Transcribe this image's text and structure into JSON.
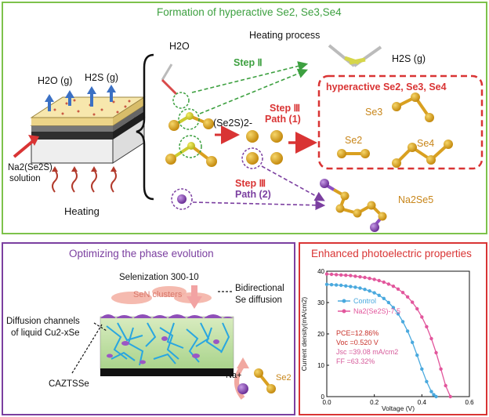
{
  "top": {
    "title": "Formation of hyperactive Se2, Se3,Se4",
    "h2o_gas": "H2O (g)",
    "h2s_gas_left": "H2S (g)",
    "na2se2s_label_line1": "Na2(Se2S)",
    "na2se2s_label_line2": "solution",
    "heating": "Heating",
    "h2o": "H2O",
    "heating_process": "Heating process",
    "h2s_gas_right": "H2S (g)",
    "step2": "Step Ⅱ",
    "se2s_ion": "(Se2S)2-",
    "step3_path1_line1": "Step Ⅲ",
    "step3_path1_line2": "Path (1)",
    "step3_path2_line1": "Step Ⅲ",
    "step3_path2_line2": "Path (2)",
    "hyperactive_label": "hyperactive Se2, Se3, Se4",
    "se3": "Se3",
    "se2": "Se2",
    "se4": "Se4",
    "na2se5": "Na2Se5"
  },
  "bottom_left": {
    "title": "Optimizing the phase evolution",
    "selenization": "Selenization 300-10",
    "sen_clusters": "SeN clusters",
    "bidirectional_line1": "Bidirectional",
    "bidirectional_line2": "Se diffusion",
    "diffusion_line1": "Diffusion channels",
    "diffusion_line2": "of liquid Cu2-xSe",
    "na_ion": "Na+",
    "se2": "Se2",
    "caztsse": "CAZTSSe"
  },
  "bottom_right": {
    "title": "Enhanced photoelectric properties",
    "ylabel": "Current density(mA/cm2)",
    "xlabel": "Voltage (V)",
    "pce": "PCE=12.86%",
    "voc": "Voc =0.520 V",
    "jsc": "Jsc =39.08 mA/cm2",
    "ff": "FF =63.32%",
    "colors": {
      "control": "#4aa9de",
      "treated": "#e2569c",
      "params_red": "#c8322b",
      "params_pink": "#d65a9a"
    }
  },
  "chart_data": {
    "type": "line",
    "xlabel": "Voltage (V)",
    "ylabel": "Current density(mA/cm2)",
    "xlim": [
      0.0,
      0.6
    ],
    "ylim": [
      0,
      40
    ],
    "xticks": [
      "0.0",
      "0.2",
      "0.4",
      "0.6"
    ],
    "yticks": [
      "0",
      "10",
      "20",
      "30",
      "40"
    ],
    "legend_position": "top-left",
    "series": [
      {
        "name": "Control",
        "x": [
          0.0,
          0.02,
          0.04,
          0.06,
          0.08,
          0.1,
          0.12,
          0.14,
          0.16,
          0.18,
          0.2,
          0.22,
          0.24,
          0.26,
          0.28,
          0.3,
          0.32,
          0.34,
          0.36,
          0.38,
          0.4,
          0.42,
          0.44,
          0.45,
          0.46
        ],
        "y": [
          35.8,
          35.7,
          35.6,
          35.5,
          35.3,
          35.1,
          34.9,
          34.6,
          34.2,
          33.7,
          33.1,
          32.3,
          31.3,
          30.0,
          28.4,
          26.4,
          23.9,
          20.9,
          17.3,
          13.2,
          8.8,
          4.8,
          1.6,
          0.6,
          0.0
        ]
      },
      {
        "name": "Na2(Se2S)-7.5",
        "x": [
          0.0,
          0.02,
          0.04,
          0.06,
          0.08,
          0.1,
          0.12,
          0.14,
          0.16,
          0.18,
          0.2,
          0.22,
          0.24,
          0.26,
          0.28,
          0.3,
          0.32,
          0.34,
          0.36,
          0.38,
          0.4,
          0.42,
          0.44,
          0.46,
          0.48,
          0.5,
          0.52
        ],
        "y": [
          39.1,
          39.0,
          38.9,
          38.8,
          38.7,
          38.6,
          38.4,
          38.2,
          38.0,
          37.7,
          37.4,
          37.0,
          36.5,
          35.9,
          35.2,
          34.3,
          33.2,
          31.8,
          30.1,
          28.0,
          25.4,
          22.3,
          18.5,
          14.0,
          8.8,
          3.5,
          0.0
        ]
      }
    ]
  }
}
